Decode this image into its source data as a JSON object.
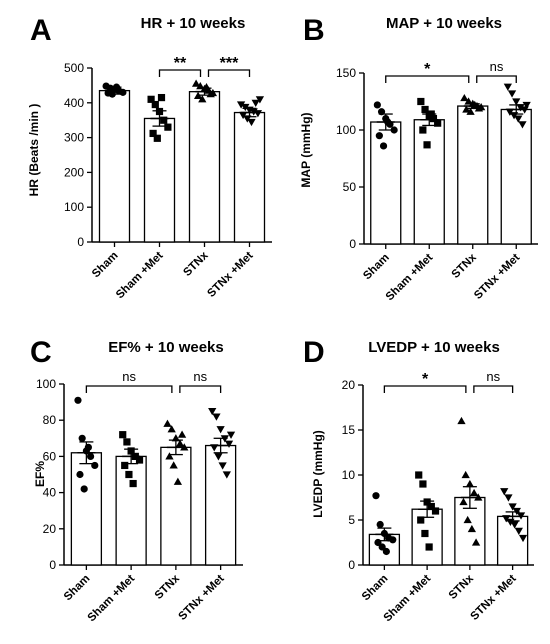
{
  "figure": {
    "colors": {
      "bar_fill": "#ffffff",
      "stroke": "#000000",
      "text": "#000000"
    }
  },
  "chart_data": [
    {
      "letter": "A",
      "type": "bar",
      "title": "HR + 10 weeks",
      "ylabel": "HR (Beats /min )",
      "ylim": [
        0,
        500
      ],
      "yticks": [
        0,
        100,
        200,
        300,
        400,
        500
      ],
      "categories": [
        "Sham",
        "Sham +Met",
        "STNx",
        "STNx +Met"
      ],
      "markers": [
        "circle",
        "square",
        "triangle",
        "triangle-down"
      ],
      "values": [
        435,
        355,
        432,
        372
      ],
      "sem": [
        10,
        22,
        10,
        12
      ],
      "points": [
        [
          448,
          442,
          438,
          435,
          430,
          428,
          425,
          445
        ],
        [
          410,
          395,
          375,
          350,
          330,
          312,
          298,
          415
        ],
        [
          455,
          448,
          440,
          435,
          428,
          420,
          410,
          445,
          425
        ],
        [
          395,
          388,
          380,
          375,
          370,
          365,
          355,
          345,
          400,
          410
        ]
      ],
      "significance": [
        {
          "from": 1,
          "to": 2,
          "label": "**"
        },
        {
          "from": 2,
          "to": 3,
          "label": "***"
        }
      ],
      "grid": false,
      "legend": "none"
    },
    {
      "letter": "B",
      "type": "bar",
      "title": "MAP + 10 weeks",
      "ylabel": "MAP (mmHg)",
      "ylim": [
        0,
        150
      ],
      "yticks": [
        0,
        50,
        100,
        150
      ],
      "categories": [
        "Sham",
        "Sham +Met",
        "STNx",
        "STNx +Met"
      ],
      "markers": [
        "circle",
        "square",
        "triangle",
        "triangle-down"
      ],
      "values": [
        107,
        109,
        121,
        118
      ],
      "sem": [
        7,
        5,
        2,
        4
      ],
      "points": [
        [
          122,
          116,
          110,
          105,
          100,
          95,
          86,
          107
        ],
        [
          125,
          118,
          112,
          110,
          106,
          100,
          87,
          114
        ],
        [
          128,
          125,
          123,
          121,
          120,
          118,
          116,
          122,
          119
        ],
        [
          138,
          132,
          125,
          120,
          118,
          116,
          113,
          110,
          105,
          122
        ]
      ],
      "significance": [
        {
          "from": 0,
          "to": 2,
          "label": "*"
        },
        {
          "from": 2,
          "to": 3,
          "label": "ns"
        }
      ],
      "grid": false,
      "legend": "none"
    },
    {
      "letter": "C",
      "type": "bar",
      "title": "EF% + 10 weeks",
      "ylabel": "EF%",
      "ylim": [
        0,
        100
      ],
      "yticks": [
        0,
        20,
        40,
        60,
        80,
        100
      ],
      "categories": [
        "Sham",
        "Sham +Met",
        "STNx",
        "STNx +Met"
      ],
      "markers": [
        "circle",
        "square",
        "triangle",
        "triangle-down"
      ],
      "values": [
        62,
        60,
        65,
        66
      ],
      "sem": [
        6,
        4,
        4,
        4
      ],
      "points": [
        [
          91,
          70,
          63,
          60,
          55,
          50,
          42,
          65
        ],
        [
          72,
          68,
          63,
          60,
          58,
          55,
          50,
          45
        ],
        [
          78,
          75,
          70,
          67,
          65,
          60,
          55,
          46,
          72
        ],
        [
          85,
          82,
          75,
          70,
          67,
          65,
          60,
          55,
          50,
          72
        ]
      ],
      "significance": [
        {
          "from": 0,
          "to": 2,
          "label": "ns"
        },
        {
          "from": 2,
          "to": 3,
          "label": "ns"
        }
      ],
      "grid": false,
      "legend": "none"
    },
    {
      "letter": "D",
      "type": "bar",
      "title": "LVEDP + 10 weeks",
      "ylabel": "LVEDP (mmHg)",
      "ylim": [
        0,
        20
      ],
      "yticks": [
        0,
        5,
        10,
        15,
        20
      ],
      "categories": [
        "Sham",
        "Sham +Met",
        "STNx",
        "STNx +Met"
      ],
      "markers": [
        "circle",
        "square",
        "triangle",
        "triangle-down"
      ],
      "values": [
        3.4,
        6.2,
        7.5,
        5.4
      ],
      "sem": [
        0.7,
        0.9,
        1.2,
        0.5
      ],
      "points": [
        [
          7.7,
          4.5,
          3.5,
          3.0,
          2.8,
          2.5,
          2.0,
          1.5
        ],
        [
          10.0,
          9.0,
          7.0,
          6.5,
          6.0,
          5.0,
          3.5,
          2.0
        ],
        [
          16.0,
          10.0,
          9.0,
          8.0,
          7.5,
          7.0,
          5.0,
          4.0,
          2.5
        ],
        [
          8.2,
          7.5,
          6.5,
          6.0,
          5.5,
          5.2,
          4.8,
          4.5,
          3.8,
          3.0
        ]
      ],
      "significance": [
        {
          "from": 0,
          "to": 2,
          "label": "*"
        },
        {
          "from": 2,
          "to": 3,
          "label": "ns"
        }
      ],
      "grid": false,
      "legend": "none"
    }
  ]
}
